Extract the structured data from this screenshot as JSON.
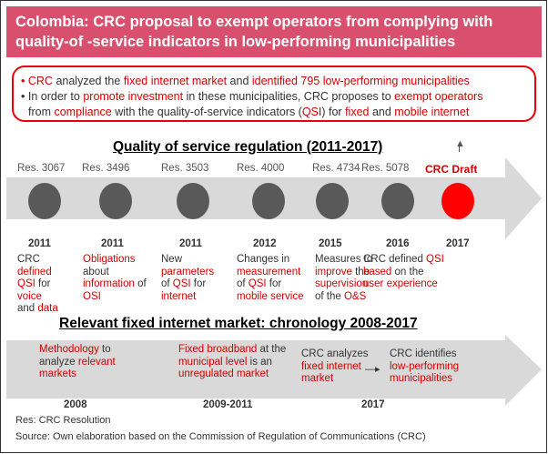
{
  "header": {
    "line1": "Colombia: CRC proposal to exempt operators from complying with",
    "line2": "quality-of -service indicators in low-performing municipalities"
  },
  "summary": {
    "b1": [
      "CRC",
      " analyzed the ",
      "fixed internet market",
      " and ",
      "identified 795 low-performing  municipalities"
    ],
    "b2a": [
      "In order to ",
      "promote investment",
      " in these municipalities, CRC proposes to ",
      "exempt operators"
    ],
    "b2b": [
      "from ",
      "compliance",
      " with the quality-of-service  indicators (",
      "QSI",
      ") for ",
      "fixed",
      " and ",
      "mobile internet"
    ]
  },
  "qos": {
    "title": "Quality of service regulation (2011-2017)",
    "draft_label": "CRC Draft",
    "items": [
      {
        "res": "Res. 3067",
        "year": "2011",
        "desc": [
          [
            "CRC",
            "k"
          ],
          [
            "\n",
            ""
          ],
          [
            "defined",
            "r"
          ],
          [
            "\n",
            ""
          ],
          [
            "QSI",
            "r"
          ],
          [
            " for",
            "k"
          ],
          [
            "\n",
            ""
          ],
          [
            "voice",
            "r"
          ],
          [
            "\n",
            ""
          ],
          [
            "and ",
            "k"
          ],
          [
            "data",
            "r"
          ]
        ]
      },
      {
        "res": "Res. 3496",
        "year": "2011",
        "desc": [
          [
            "Obligations",
            "r"
          ],
          [
            "\n",
            ""
          ],
          [
            "about",
            "k"
          ],
          [
            "\n",
            ""
          ],
          [
            "information",
            "r"
          ],
          [
            " of",
            "k"
          ],
          [
            "\n",
            ""
          ],
          [
            "OSI",
            "r"
          ]
        ]
      },
      {
        "res": "Res. 3503",
        "year": "2011",
        "desc": [
          [
            "New",
            "k"
          ],
          [
            "\n",
            ""
          ],
          [
            "parameters",
            "r"
          ],
          [
            "\n",
            ""
          ],
          [
            "of ",
            "k"
          ],
          [
            "QSI",
            "r"
          ],
          [
            " for",
            "k"
          ],
          [
            "\n",
            ""
          ],
          [
            "internet",
            "r"
          ]
        ]
      },
      {
        "res": "Res. 4000",
        "year": "2012",
        "desc": [
          [
            "Changes in",
            "k"
          ],
          [
            "\n",
            ""
          ],
          [
            "measurement",
            "r"
          ],
          [
            "\n",
            ""
          ],
          [
            "of ",
            "k"
          ],
          [
            "QSI",
            "r"
          ],
          [
            " for",
            "k"
          ],
          [
            "\n",
            ""
          ],
          [
            "mobile service",
            "r"
          ]
        ]
      },
      {
        "res": "Res. 4734",
        "year": "2015",
        "desc": [
          [
            "Measures to",
            "k"
          ],
          [
            "\n",
            ""
          ],
          [
            "improve",
            "r"
          ],
          [
            " the",
            "k"
          ],
          [
            "\n",
            ""
          ],
          [
            "supervision",
            "r"
          ],
          [
            "\n",
            ""
          ],
          [
            "of the ",
            "k"
          ],
          [
            "O&S",
            "r"
          ]
        ]
      },
      {
        "res": "Res. 5078",
        "year": "2016",
        "desc": [
          [
            "CRC defined ",
            "k"
          ],
          [
            "QSI",
            "r"
          ],
          [
            "\n",
            ""
          ],
          [
            "based",
            "r"
          ],
          [
            " on the",
            "k"
          ],
          [
            "\n",
            ""
          ],
          [
            "user experience",
            "r"
          ]
        ]
      },
      {
        "res": "",
        "year": "2017",
        "desc": []
      }
    ]
  },
  "market": {
    "title": "Relevant fixed internet market: chronology 2008-2017",
    "box1": [
      [
        "Methodology",
        "r"
      ],
      [
        " to",
        "k"
      ],
      [
        "\n",
        ""
      ],
      [
        "analyze ",
        "k"
      ],
      [
        "relevant",
        "r"
      ],
      [
        "\n",
        ""
      ],
      [
        "markets",
        "r"
      ]
    ],
    "box2": [
      [
        "Fixed broadband",
        "r"
      ],
      [
        " at the",
        "k"
      ],
      [
        "\n",
        ""
      ],
      [
        "municipal level",
        "r"
      ],
      [
        " is an",
        "k"
      ],
      [
        "\n",
        ""
      ],
      [
        "unregulated market",
        "r"
      ]
    ],
    "box3": [
      [
        "CRC analyzes",
        "k"
      ],
      [
        "\n",
        ""
      ],
      [
        "fixed internet",
        "r"
      ],
      [
        "\n",
        ""
      ],
      [
        "market",
        "r"
      ]
    ],
    "box4": [
      [
        "CRC identifies",
        "k"
      ],
      [
        "\n",
        ""
      ],
      [
        "low-performing",
        "r"
      ],
      [
        "\n",
        ""
      ],
      [
        "municipalities",
        "r"
      ]
    ],
    "year1": "2008",
    "year2": "2009-2011",
    "year3": "2017"
  },
  "footer": {
    "note": "Res: CRC Resolution",
    "source": "Source: Own elaboration based on the Commission of Regulation of Communications (CRC)"
  },
  "colors": {
    "header_bg": "#d9506e",
    "accent_red": "#d40000",
    "dot_gray": "#595959",
    "dot_red": "#ff0000",
    "band_gray": "#d9d9d9"
  }
}
